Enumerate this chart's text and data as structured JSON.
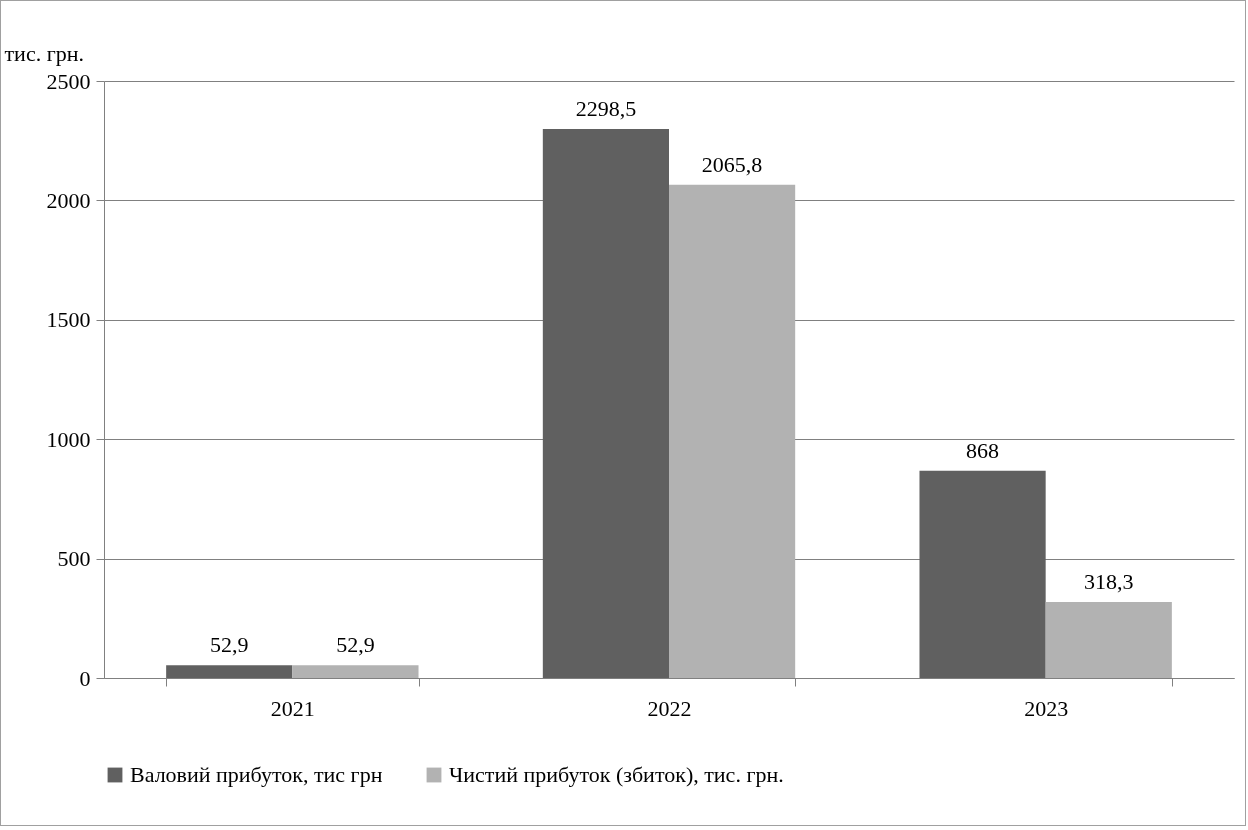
{
  "chart_data": {
    "type": "bar",
    "ylabel": "тис. грн.",
    "categories": [
      "2021",
      "2022",
      "2023"
    ],
    "series": [
      {
        "name": "Валовий прибуток, тис грн",
        "color": "#606060",
        "values": [
          52.9,
          2298.5,
          868
        ],
        "value_labels": [
          "52,9",
          "2298,5",
          "868"
        ]
      },
      {
        "name": "Чистий прибуток (збиток), тис. грн.",
        "color": "#b2b2b2",
        "values": [
          52.9,
          2065.8,
          318.3
        ],
        "value_labels": [
          "52,9",
          "2065,8",
          "318,3"
        ]
      }
    ],
    "ylim": [
      0,
      2500
    ],
    "yticks": [
      0,
      500,
      1000,
      1500,
      2000,
      2500
    ],
    "grid": "y",
    "legend": "bottom"
  }
}
